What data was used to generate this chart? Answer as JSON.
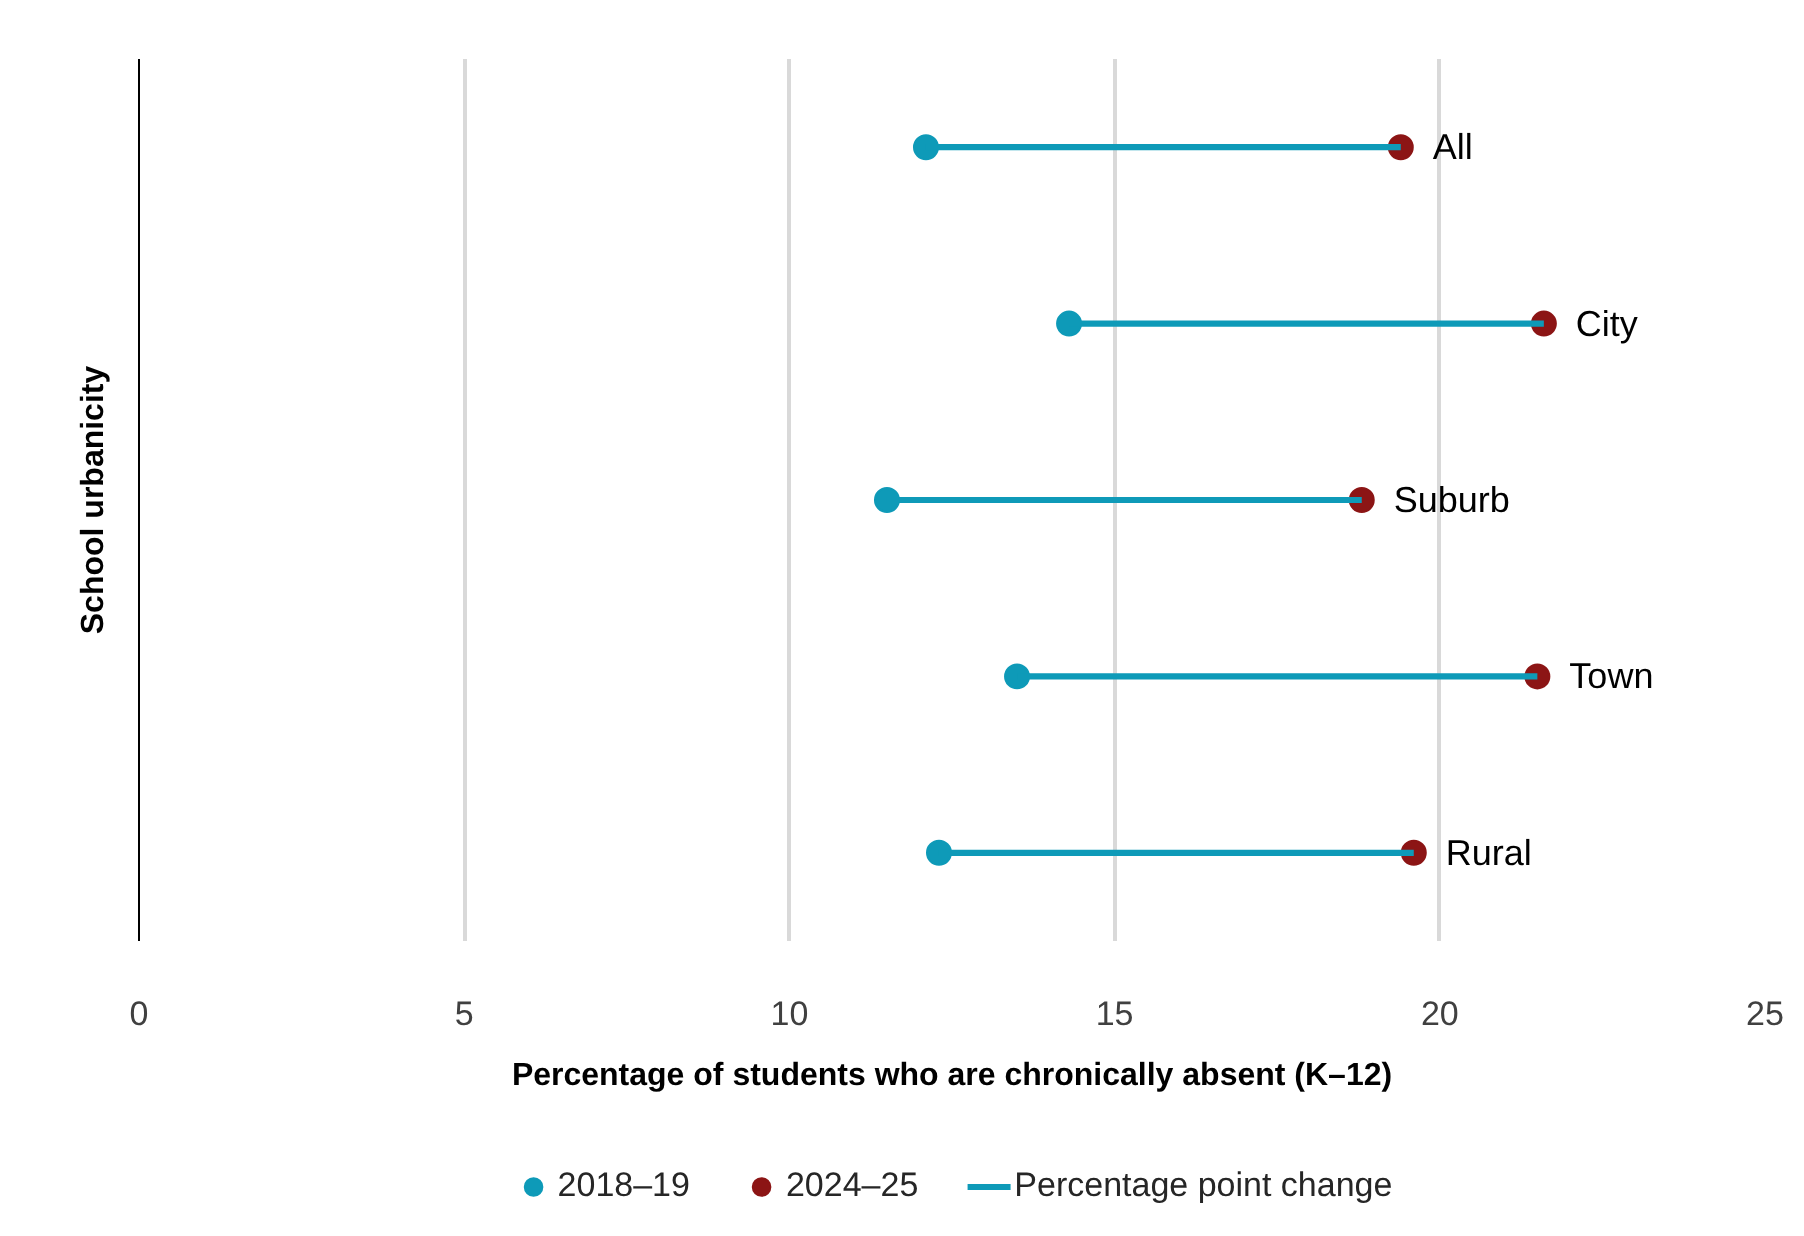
{
  "chart_data": {
    "type": "scatter",
    "orientation": "horizontal",
    "categories": [
      "All",
      "City",
      "Suburb",
      "Town",
      "Rural"
    ],
    "series": [
      {
        "name": "2018–19",
        "color": "#0e9ab8",
        "values": [
          12.1,
          14.3,
          11.5,
          13.5,
          12.3
        ]
      },
      {
        "name": "2024–25",
        "color": "#8c1515",
        "values": [
          19.4,
          21.6,
          18.8,
          21.5,
          19.6
        ]
      },
      {
        "name": "Percentage point change",
        "type": "bar",
        "color": "#0e9ab8",
        "base": [
          12.1,
          14.3,
          11.5,
          13.5,
          12.3
        ],
        "values": [
          7.3,
          7.3,
          7.3,
          8.0,
          7.3
        ]
      }
    ],
    "xlabel": "Percentage of students who are chronically absent (K–12)",
    "ylabel": "School urbanicity",
    "xlim": [
      0,
      25
    ],
    "xticks": [
      0,
      5,
      10,
      15,
      20,
      25
    ],
    "grid": "x",
    "legend": "bottom",
    "marker": "circle",
    "tick_labels": "x"
  }
}
